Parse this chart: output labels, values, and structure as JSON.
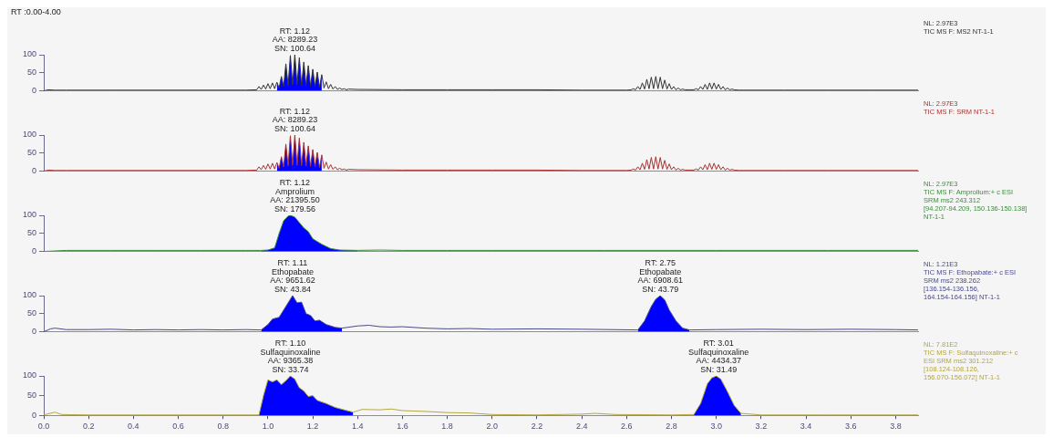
{
  "chart_data": [
    {
      "type": "line",
      "title": "RT :0.00-4.00",
      "xlim": [
        0,
        3.9
      ],
      "ylim": [
        0,
        100
      ],
      "yticks": [
        0,
        50,
        100
      ],
      "tick_labels": "y",
      "legend": false,
      "series": [
        {
          "color": "#333333",
          "x": [
            0,
            0.02,
            0.05,
            0.1,
            0.3,
            0.5,
            0.7,
            0.9,
            0.95,
            0.96,
            0.97,
            0.98,
            0.99,
            1.0,
            1.01,
            1.02,
            1.03,
            1.04,
            1.05,
            1.06,
            1.07,
            1.08,
            1.09,
            1.1,
            1.11,
            1.12,
            1.13,
            1.14,
            1.15,
            1.16,
            1.17,
            1.18,
            1.19,
            1.2,
            1.21,
            1.22,
            1.23,
            1.24,
            1.25,
            1.26,
            1.27,
            1.28,
            1.29,
            1.3,
            1.31,
            1.32,
            1.33,
            1.34,
            1.35,
            1.36,
            1.4,
            1.6,
            1.8,
            2.0,
            2.2,
            2.4,
            2.6,
            2.62,
            2.63,
            2.64,
            2.65,
            2.66,
            2.67,
            2.68,
            2.69,
            2.7,
            2.71,
            2.72,
            2.73,
            2.74,
            2.75,
            2.76,
            2.77,
            2.78,
            2.79,
            2.8,
            2.81,
            2.82,
            2.83,
            2.84,
            2.85,
            2.86,
            2.88,
            2.9,
            2.91,
            2.92,
            2.93,
            2.94,
            2.95,
            2.96,
            2.97,
            2.98,
            2.99,
            3.0,
            3.01,
            3.02,
            3.03,
            3.04,
            3.05,
            3.06,
            3.07,
            3.08,
            3.1,
            3.3,
            3.5,
            3.7,
            3.9
          ],
          "values": [
            0,
            3,
            2,
            2,
            2,
            2,
            2,
            2,
            3,
            12,
            4,
            16,
            5,
            20,
            6,
            22,
            6,
            24,
            8,
            40,
            12,
            75,
            15,
            98,
            16,
            100,
            16,
            92,
            15,
            80,
            14,
            70,
            13,
            60,
            12,
            52,
            10,
            45,
            8,
            25,
            6,
            18,
            5,
            12,
            4,
            8,
            4,
            6,
            3,
            5,
            4,
            3,
            3,
            3,
            3,
            2,
            2,
            3,
            6,
            3,
            12,
            4,
            22,
            5,
            32,
            6,
            38,
            6,
            40,
            6,
            38,
            6,
            30,
            5,
            20,
            4,
            12,
            3,
            8,
            3,
            5,
            3,
            3,
            3,
            6,
            3,
            12,
            4,
            18,
            4,
            22,
            5,
            22,
            5,
            18,
            4,
            12,
            3,
            8,
            3,
            5,
            3,
            2,
            2,
            2,
            2,
            2
          ]
        },
        {
          "type": "area",
          "color": "#0000ff",
          "x": [
            1.04,
            1.05,
            1.06,
            1.07,
            1.08,
            1.09,
            1.1,
            1.11,
            1.12,
            1.13,
            1.14,
            1.15,
            1.16,
            1.17,
            1.18,
            1.19,
            1.2,
            1.21,
            1.22,
            1.23,
            1.24
          ],
          "values": [
            24,
            8,
            40,
            12,
            75,
            15,
            98,
            16,
            100,
            16,
            92,
            15,
            80,
            14,
            70,
            13,
            60,
            12,
            52,
            10,
            45
          ]
        }
      ],
      "annotations": [
        {
          "text": "RT: 1.12\nAA: 8289.23\nSN: 100.64",
          "x": 1.12,
          "y": 100
        },
        "NL: 2.97E3\nTIC MS F: MS2 NT-1-1"
      ]
    },
    {
      "type": "line",
      "xlim": [
        0,
        3.9
      ],
      "ylim": [
        0,
        100
      ],
      "yticks": [
        0,
        50,
        100
      ],
      "tick_labels": "y",
      "legend": false,
      "series": [
        {
          "color": "#a83232",
          "x": [
            0,
            0.02,
            0.05,
            0.1,
            0.3,
            0.5,
            0.7,
            0.9,
            0.95,
            0.96,
            0.97,
            0.98,
            0.99,
            1.0,
            1.01,
            1.02,
            1.03,
            1.04,
            1.05,
            1.06,
            1.07,
            1.08,
            1.09,
            1.1,
            1.11,
            1.12,
            1.13,
            1.14,
            1.15,
            1.16,
            1.17,
            1.18,
            1.19,
            1.2,
            1.21,
            1.22,
            1.23,
            1.24,
            1.25,
            1.26,
            1.27,
            1.28,
            1.29,
            1.3,
            1.31,
            1.32,
            1.33,
            1.34,
            1.35,
            1.36,
            1.4,
            1.6,
            1.8,
            2.0,
            2.2,
            2.4,
            2.6,
            2.62,
            2.63,
            2.64,
            2.65,
            2.66,
            2.67,
            2.68,
            2.69,
            2.7,
            2.71,
            2.72,
            2.73,
            2.74,
            2.75,
            2.76,
            2.77,
            2.78,
            2.79,
            2.8,
            2.81,
            2.82,
            2.83,
            2.84,
            2.85,
            2.86,
            2.88,
            2.9,
            2.91,
            2.92,
            2.93,
            2.94,
            2.95,
            2.96,
            2.97,
            2.98,
            2.99,
            3.0,
            3.01,
            3.02,
            3.03,
            3.04,
            3.05,
            3.06,
            3.07,
            3.08,
            3.1,
            3.3,
            3.5,
            3.7,
            3.9
          ],
          "values": [
            0,
            3,
            2,
            2,
            2,
            2,
            2,
            2,
            3,
            12,
            4,
            16,
            5,
            20,
            6,
            22,
            6,
            24,
            8,
            40,
            12,
            75,
            15,
            98,
            16,
            100,
            16,
            92,
            15,
            80,
            14,
            70,
            13,
            60,
            12,
            52,
            10,
            45,
            8,
            25,
            6,
            18,
            5,
            12,
            4,
            8,
            4,
            6,
            3,
            5,
            4,
            3,
            3,
            3,
            3,
            2,
            2,
            3,
            6,
            3,
            12,
            4,
            22,
            5,
            32,
            6,
            38,
            6,
            40,
            6,
            38,
            6,
            30,
            5,
            20,
            4,
            12,
            3,
            8,
            3,
            5,
            3,
            3,
            3,
            6,
            3,
            12,
            4,
            18,
            4,
            22,
            5,
            22,
            5,
            18,
            4,
            12,
            3,
            8,
            3,
            5,
            3,
            2,
            2,
            2,
            2,
            2
          ]
        },
        {
          "type": "area",
          "color": "#0000ff",
          "x": [
            1.04,
            1.05,
            1.06,
            1.07,
            1.08,
            1.09,
            1.1,
            1.11,
            1.12,
            1.13,
            1.14,
            1.15,
            1.16,
            1.17,
            1.18,
            1.19,
            1.2,
            1.21,
            1.22,
            1.23,
            1.24
          ],
          "values": [
            24,
            8,
            40,
            12,
            75,
            15,
            98,
            16,
            100,
            16,
            92,
            15,
            80,
            14,
            70,
            13,
            60,
            12,
            52,
            10,
            45
          ]
        }
      ],
      "annotations": [
        {
          "text": "RT: 1.12\nAA: 8289.23\nSN: 100.64",
          "x": 1.12,
          "y": 100
        },
        "NL: 2.97E3\nTIC MS F: SRM NT-1-1"
      ]
    },
    {
      "type": "line",
      "xlim": [
        0,
        3.9
      ],
      "ylim": [
        0,
        100
      ],
      "yticks": [
        0,
        50,
        100
      ],
      "tick_labels": "y",
      "legend": false,
      "series": [
        {
          "color": "#3c8c3c",
          "x": [
            0,
            0.1,
            0.3,
            0.5,
            0.7,
            0.9,
            0.97,
            1.0,
            1.03,
            1.05,
            1.07,
            1.09,
            1.1,
            1.12,
            1.14,
            1.16,
            1.18,
            1.2,
            1.24,
            1.28,
            1.32,
            1.4,
            1.5,
            1.6,
            1.8,
            2.0,
            2.5,
            3.0,
            3.5,
            3.9
          ],
          "values": [
            0,
            3,
            3,
            3,
            3,
            3,
            3,
            4,
            10,
            50,
            85,
            98,
            100,
            95,
            80,
            65,
            55,
            35,
            20,
            8,
            4,
            3,
            4,
            3,
            3,
            3,
            3,
            3,
            3,
            3
          ]
        },
        {
          "type": "area",
          "color": "#0000ff",
          "x": [
            0.97,
            1.0,
            1.03,
            1.05,
            1.07,
            1.09,
            1.1,
            1.12,
            1.14,
            1.16,
            1.18,
            1.2,
            1.24,
            1.28,
            1.32,
            1.4
          ],
          "values": [
            3,
            4,
            10,
            50,
            85,
            98,
            100,
            95,
            80,
            65,
            55,
            35,
            20,
            8,
            4,
            3
          ]
        }
      ],
      "annotations": [
        {
          "text": "RT: 1.12\nAmprolium\nAA: 21395.50\nSN: 179.56",
          "x": 1.12,
          "y": 100
        },
        "NL: 2.97E3\nTIC MS F: Amprolium:+ c ESI\nSRM ms2 243.312\n[94.207-94.209, 150.136-150.138]\nNT-1-1"
      ]
    },
    {
      "type": "line",
      "xlim": [
        0,
        3.9
      ],
      "ylim": [
        0,
        100
      ],
      "yticks": [
        0,
        50,
        100
      ],
      "tick_labels": "y",
      "legend": false,
      "series": [
        {
          "color": "#4a4a8c",
          "x": [
            0,
            0.03,
            0.05,
            0.1,
            0.2,
            0.3,
            0.4,
            0.5,
            0.6,
            0.7,
            0.8,
            0.9,
            0.97,
            1.0,
            1.02,
            1.05,
            1.08,
            1.11,
            1.13,
            1.15,
            1.17,
            1.19,
            1.21,
            1.23,
            1.26,
            1.3,
            1.33,
            1.4,
            1.45,
            1.5,
            1.55,
            1.6,
            1.7,
            1.8,
            1.9,
            2.0,
            2.2,
            2.4,
            2.65,
            2.68,
            2.71,
            2.73,
            2.75,
            2.77,
            2.79,
            2.82,
            2.85,
            2.88,
            3.0,
            3.2,
            3.4,
            3.6,
            3.8,
            3.9
          ],
          "values": [
            0,
            8,
            10,
            6,
            6,
            7,
            5,
            6,
            5,
            6,
            5,
            6,
            5,
            20,
            35,
            40,
            70,
            100,
            80,
            82,
            50,
            45,
            30,
            32,
            20,
            12,
            10,
            16,
            18,
            14,
            13,
            14,
            10,
            8,
            9,
            7,
            8,
            7,
            5,
            30,
            70,
            90,
            100,
            88,
            60,
            30,
            10,
            5,
            6,
            7,
            6,
            7,
            6,
            5
          ]
        },
        {
          "type": "area",
          "color": "#0000ff",
          "x": [
            0.97,
            1.0,
            1.02,
            1.05,
            1.08,
            1.11,
            1.13,
            1.15,
            1.17,
            1.19,
            1.21,
            1.23,
            1.26,
            1.3,
            1.33
          ],
          "values": [
            5,
            20,
            35,
            40,
            70,
            100,
            80,
            82,
            50,
            45,
            30,
            32,
            20,
            12,
            10
          ]
        },
        {
          "type": "area",
          "color": "#0000ff",
          "x": [
            2.65,
            2.68,
            2.71,
            2.73,
            2.75,
            2.77,
            2.79,
            2.82,
            2.85,
            2.88
          ],
          "values": [
            5,
            30,
            70,
            90,
            100,
            88,
            60,
            30,
            10,
            5
          ]
        }
      ],
      "annotations": [
        {
          "text": "RT: 1.11\nEthopabate\nAA: 9651.62\nSN: 43.84",
          "x": 1.11,
          "y": 100
        },
        {
          "text": "RT: 2.75\nEthopabate\nAA: 6908.61\nSN: 43.79",
          "x": 2.75,
          "y": 100
        },
        "NL: 1.21E3\nTIC MS F: Ethopabate:+ c ESI\nSRM ms2 238.262\n[136.154-136.156,\n164.154-164.156] NT-1-1"
      ]
    },
    {
      "type": "line",
      "xlim": [
        0,
        3.9
      ],
      "ylim": [
        0,
        100
      ],
      "yticks": [
        0,
        50,
        100
      ],
      "legend": false,
      "xticks": [
        {
          "value": 0,
          "label": "0.0"
        },
        0.2,
        0.4,
        0.6,
        0.8,
        {
          "value": 1,
          "label": "1.0"
        },
        1.2,
        1.4,
        1.6,
        1.8,
        {
          "value": 2,
          "label": "2.0"
        },
        2.2,
        2.4,
        2.6,
        2.8,
        {
          "value": 3,
          "label": "3.0"
        },
        3.2,
        3.4,
        3.6,
        3.8
      ],
      "series": [
        {
          "color": "#b5a642",
          "x": [
            0,
            0.05,
            0.08,
            0.2,
            0.4,
            0.6,
            0.8,
            0.96,
            0.98,
            1.0,
            1.02,
            1.04,
            1.06,
            1.08,
            1.1,
            1.12,
            1.14,
            1.16,
            1.18,
            1.2,
            1.22,
            1.26,
            1.3,
            1.34,
            1.38,
            1.42,
            1.5,
            1.55,
            1.6,
            1.7,
            1.8,
            1.9,
            2.0,
            2.2,
            2.4,
            2.46,
            2.55,
            2.8,
            2.9,
            2.93,
            2.96,
            2.98,
            3.0,
            3.02,
            3.05,
            3.08,
            3.11,
            3.2,
            3.5,
            3.9
          ],
          "values": [
            1,
            8,
            2,
            1,
            1,
            1,
            1,
            1,
            50,
            90,
            85,
            90,
            78,
            88,
            100,
            92,
            70,
            62,
            48,
            50,
            38,
            30,
            20,
            14,
            8,
            15,
            14,
            16,
            12,
            10,
            7,
            6,
            2,
            1,
            3,
            5,
            2,
            1,
            2,
            30,
            80,
            95,
            100,
            92,
            60,
            25,
            5,
            1,
            1,
            1
          ]
        },
        {
          "type": "area",
          "color": "#0000ff",
          "x": [
            0.96,
            0.98,
            1.0,
            1.02,
            1.04,
            1.06,
            1.08,
            1.1,
            1.12,
            1.14,
            1.16,
            1.18,
            1.2,
            1.22,
            1.26,
            1.3,
            1.34,
            1.38
          ],
          "values": [
            1,
            50,
            90,
            85,
            90,
            78,
            88,
            100,
            92,
            70,
            62,
            48,
            50,
            38,
            30,
            20,
            14,
            8
          ]
        },
        {
          "type": "area",
          "color": "#0000ff",
          "x": [
            2.9,
            2.93,
            2.96,
            2.98,
            3.0,
            3.02,
            3.05,
            3.08,
            3.11
          ],
          "values": [
            2,
            30,
            80,
            95,
            100,
            92,
            60,
            25,
            5
          ]
        }
      ],
      "annotations": [
        {
          "text": "RT: 1.10\nSulfaquinoxaline\nAA: 9365.38\nSN: 33.74",
          "x": 1.1,
          "y": 100
        },
        {
          "text": "RT: 3.01\nSulfaquinoxaline\nAA: 4434.37\nSN: 31.49",
          "x": 3.01,
          "y": 100
        },
        "NL: 7.81E2\nTIC MS F: Sulfaquinoxaline:+ c\nESI SRM ms2 301.212\n[108.124-108.126,\n156.070-156.072] NT-1-1"
      ]
    }
  ]
}
